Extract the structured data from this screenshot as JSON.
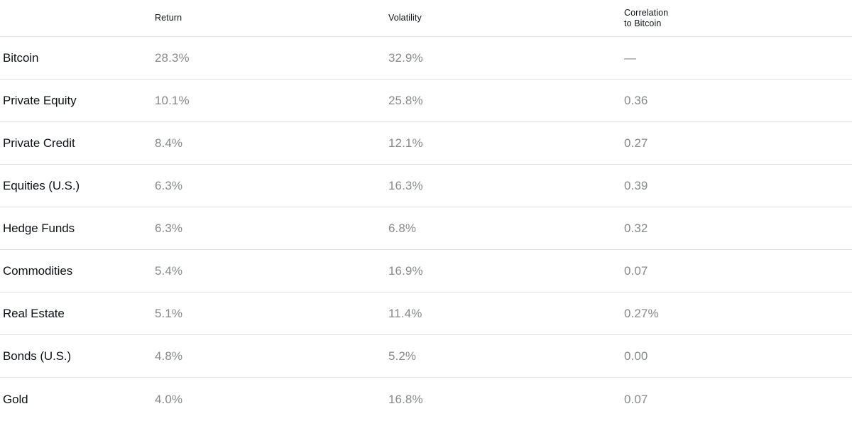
{
  "chart_data": {
    "type": "table",
    "title": "",
    "columns": [
      "",
      "Return",
      "Volatility",
      "Correlation to Bitcoin"
    ],
    "header": {
      "return": "Return",
      "volatility": "Volatility",
      "correlation_line1": "Correlation",
      "correlation_line2": "to Bitcoin"
    },
    "rows": [
      {
        "label": "Bitcoin",
        "return": "28.3%",
        "volatility": "32.9%",
        "correlation": "—"
      },
      {
        "label": "Private Equity",
        "return": "10.1%",
        "volatility": "25.8%",
        "correlation": "0.36"
      },
      {
        "label": "Private Credit",
        "return": "8.4%",
        "volatility": "12.1%",
        "correlation": "0.27"
      },
      {
        "label": "Equities (U.S.)",
        "return": "6.3%",
        "volatility": "16.3%",
        "correlation": "0.39"
      },
      {
        "label": "Hedge Funds",
        "return": "6.3%",
        "volatility": "6.8%",
        "correlation": "0.32"
      },
      {
        "label": "Commodities",
        "return": "5.4%",
        "volatility": "16.9%",
        "correlation": "0.07"
      },
      {
        "label": "Real Estate",
        "return": "5.1%",
        "volatility": "11.4%",
        "correlation": "0.27%"
      },
      {
        "label": "Bonds (U.S.)",
        "return": "4.8%",
        "volatility": "5.2%",
        "correlation": "0.00"
      },
      {
        "label": "Gold",
        "return": "4.0%",
        "volatility": "16.8%",
        "correlation": "0.07"
      }
    ]
  },
  "colors": {
    "label_text": "#0e1116",
    "value_text": "#87898c",
    "header_text": "#111418",
    "divider": "#e0e0e0",
    "background": "#ffffff"
  }
}
